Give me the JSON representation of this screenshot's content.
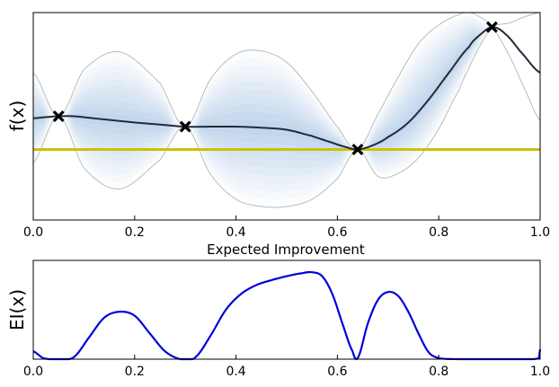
{
  "chart_data": [
    {
      "type": "line",
      "title": "",
      "xlabel": "",
      "ylabel": "f(x)",
      "xlim": [
        0.0,
        1.0
      ],
      "ylim": [
        -1.0,
        1.0
      ],
      "x_ticks": [
        "0.0",
        "0.2",
        "0.4",
        "0.6",
        "0.8",
        "1.0"
      ],
      "grid": false,
      "colors": {
        "mean": "#1f2b3a",
        "band": "#bbbbbb",
        "threshold": "#c8c400",
        "shading": "#3a78c0",
        "points": "#000000"
      },
      "observations": {
        "x": [
          0.05,
          0.3,
          0.64,
          0.905
        ],
        "y": [
          0.0,
          -0.1,
          -0.32,
          0.86
        ]
      },
      "mean": {
        "x": [
          0.0,
          0.02,
          0.05,
          0.08,
          0.12,
          0.16,
          0.2,
          0.25,
          0.3,
          0.35,
          0.4,
          0.45,
          0.5,
          0.55,
          0.58,
          0.62,
          0.64,
          0.67,
          0.7,
          0.74,
          0.78,
          0.82,
          0.86,
          0.88,
          0.905,
          0.93,
          0.96,
          1.0
        ],
        "y": [
          -0.02,
          -0.01,
          0.0,
          0.0,
          -0.02,
          -0.04,
          -0.06,
          -0.08,
          -0.1,
          -0.1,
          -0.1,
          -0.11,
          -0.13,
          -0.19,
          -0.24,
          -0.3,
          -0.32,
          -0.28,
          -0.2,
          -0.06,
          0.16,
          0.42,
          0.67,
          0.78,
          0.86,
          0.8,
          0.63,
          0.42
        ]
      },
      "upper_band": {
        "x": [
          0.0,
          0.05,
          0.1,
          0.17,
          0.25,
          0.3,
          0.35,
          0.4,
          0.45,
          0.5,
          0.55,
          0.6,
          0.64,
          0.68,
          0.72,
          0.76,
          0.8,
          0.84,
          0.86,
          0.88,
          0.905,
          0.94,
          0.97,
          1.0
        ],
        "y": [
          0.42,
          0.0,
          0.45,
          0.62,
          0.32,
          -0.1,
          0.36,
          0.6,
          0.63,
          0.52,
          0.24,
          -0.1,
          -0.32,
          0.02,
          0.38,
          0.7,
          0.88,
          0.98,
          1.0,
          0.96,
          0.86,
          0.58,
          0.26,
          -0.04
        ]
      },
      "lower_band": {
        "x": [
          0.0,
          0.05,
          0.1,
          0.17,
          0.25,
          0.3,
          0.35,
          0.4,
          0.45,
          0.5,
          0.55,
          0.6,
          0.64,
          0.68,
          0.72,
          0.76,
          0.8,
          0.84,
          0.86,
          0.88,
          0.905,
          0.94,
          0.97,
          1.0
        ],
        "y": [
          -0.45,
          0.0,
          -0.5,
          -0.7,
          -0.42,
          -0.1,
          -0.56,
          -0.8,
          -0.87,
          -0.87,
          -0.8,
          -0.6,
          -0.32,
          -0.58,
          -0.55,
          -0.4,
          -0.12,
          0.25,
          0.47,
          0.67,
          0.86,
          0.9,
          0.96,
          1.0
        ]
      },
      "threshold_y": -0.32
    },
    {
      "type": "line",
      "title": "Expected Improvement",
      "xlabel": "",
      "ylabel": "EI(x)",
      "xlim": [
        0.0,
        1.0
      ],
      "ylim": [
        0.0,
        1.0
      ],
      "x_ticks": [
        "0.0",
        "0.2",
        "0.4",
        "0.6",
        "0.8",
        "1.0"
      ],
      "grid": false,
      "color": "#0000dd",
      "series": [
        {
          "x": [
            0.0,
            0.02,
            0.05,
            0.08,
            0.11,
            0.14,
            0.17,
            0.2,
            0.23,
            0.26,
            0.29,
            0.3,
            0.32,
            0.35,
            0.38,
            0.41,
            0.44,
            0.47,
            0.5,
            0.53,
            0.55,
            0.57,
            0.59,
            0.61,
            0.63,
            0.64,
            0.66,
            0.68,
            0.7,
            0.72,
            0.74,
            0.76,
            0.78,
            0.8,
            0.84,
            0.9,
            0.96,
            0.998,
            1.0
          ],
          "y": [
            0.08,
            0.01,
            0.0,
            0.02,
            0.22,
            0.42,
            0.48,
            0.44,
            0.26,
            0.08,
            0.0,
            0.0,
            0.02,
            0.24,
            0.5,
            0.66,
            0.75,
            0.8,
            0.84,
            0.87,
            0.88,
            0.84,
            0.66,
            0.36,
            0.08,
            0.01,
            0.36,
            0.6,
            0.68,
            0.64,
            0.48,
            0.26,
            0.07,
            0.01,
            0.0,
            0.0,
            0.0,
            0.01,
            0.1
          ]
        }
      ]
    }
  ]
}
